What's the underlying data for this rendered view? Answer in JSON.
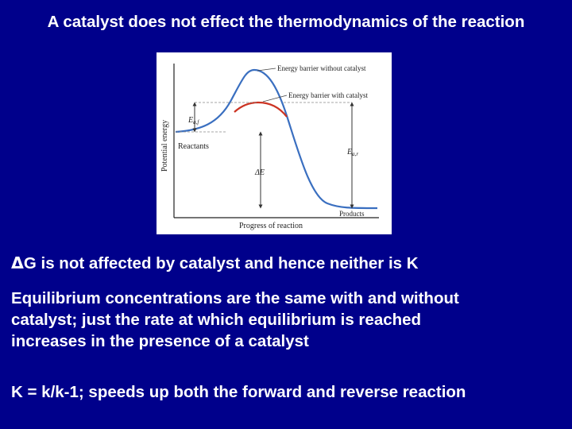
{
  "title": "A catalyst does not effect the thermodynamics of the reaction",
  "figure": {
    "label_uncatalyzed": "Energy barrier without catalyst",
    "label_catalyzed": "Energy barrier with catalyst",
    "ea_forward_symbol": "E",
    "ea_forward_sub": "a,f",
    "ea_reverse_symbol": "E",
    "ea_reverse_sub": "a,r",
    "reactants_label": "Reactants",
    "products_label": "Products",
    "delta_e_label": "ΔE",
    "y_axis_label": "Potential energy",
    "x_axis_label": "Progress of reaction",
    "colors": {
      "uncatalyzed_curve": "#3a6fc0",
      "catalyzed_curve": "#cc3322",
      "background": "#ffffff"
    }
  },
  "bullets": {
    "b1_delta": "Δ",
    "b1_text": "G is not affected by catalyst and hence neither is K",
    "b2_line1": "Equilibrium concentrations are the same with and without",
    "b2_line2": "catalyst; just the rate at which equilibrium is reached",
    "b2_line3": "increases in the presence of a catalyst",
    "b3_text": "K = k/k-1; speeds up both the forward and reverse reaction"
  },
  "colors": {
    "slide_background": "#00008b",
    "text": "#ffffff"
  }
}
